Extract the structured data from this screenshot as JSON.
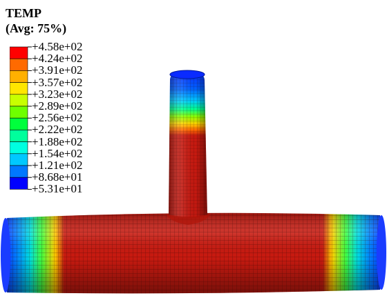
{
  "legend": {
    "title": "TEMP",
    "subtitle": "(Avg: 75%)",
    "values": [
      "+4.58e+02",
      "+4.24e+02",
      "+3.91e+02",
      "+3.57e+02",
      "+3.23e+02",
      "+2.89e+02",
      "+2.56e+02",
      "+2.22e+02",
      "+1.88e+02",
      "+1.54e+02",
      "+1.21e+02",
      "+8.68e+01",
      "+5.31e+01"
    ],
    "band_colors": [
      "#ff0000",
      "#ff6a00",
      "#ffb000",
      "#ffe600",
      "#c8ff00",
      "#6eff00",
      "#00ff3c",
      "#00ff9c",
      "#00ffe0",
      "#00c8ff",
      "#0078ff",
      "#0000ff"
    ]
  },
  "model": {
    "description_colors": {
      "hot": "#c81a10",
      "mesh": "#5a0a06"
    }
  }
}
